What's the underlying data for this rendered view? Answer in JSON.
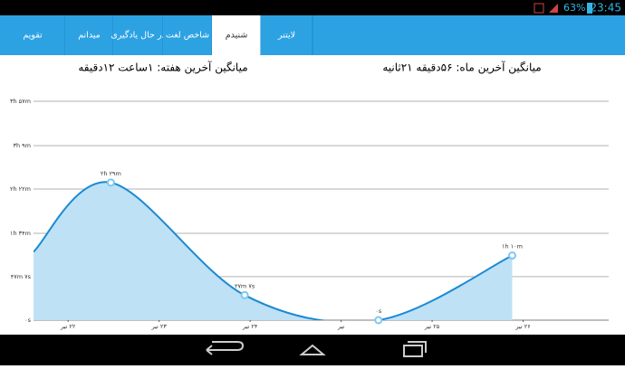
{
  "status_bar": {
    "battery": "63%",
    "time": "23:45"
  },
  "tabs": [
    "تقویم",
    "میدانم",
    "در حال یادگیری",
    "شاخص لغت",
    "شنیدم",
    "لایتنر"
  ],
  "selected_tab": 4,
  "stats": {
    "week": "میانگین آخرین هفته: ۱ساعت ۱۲دقیقه",
    "month": "میانگین آخرین ماه: ۵۶دقیقه ۲۱ثانیه"
  },
  "chart_data": {
    "type": "line",
    "x": [
      -0.38,
      0.47,
      1.94,
      3.41,
      4.88
    ],
    "series": [
      {
        "color": "#1a8ad4",
        "fill": "#bfe1f5",
        "marker": "#7cc8f0",
        "values": [
          74,
          149,
          27.12,
          0,
          70
        ],
        "value_labels": [
          null,
          "۲h ۲۹m",
          "۲۷m ۷s",
          "۰s",
          "۱h ۱۰m"
        ]
      }
    ],
    "xlim": [
      -0.38,
      5.94
    ],
    "xticks": [
      {
        "value": 0,
        "label": "۲۲ تیر"
      },
      {
        "value": 1,
        "label": "۲۳ تیر"
      },
      {
        "value": 2,
        "label": "۲۴ تیر"
      },
      {
        "value": 3,
        "label": "تیر"
      },
      {
        "value": 4,
        "label": "۲۵ تیر"
      },
      {
        "value": 5,
        "label": "۲۶ تیر"
      }
    ],
    "ylim": [
      0,
      237
    ],
    "yticks": [
      {
        "value": 0,
        "label": "۰s"
      },
      {
        "value": 47.12,
        "label": "۴۷m ۷s"
      },
      {
        "value": 94,
        "label": "۱h ۳۴m"
      },
      {
        "value": 142,
        "label": "۲h ۲۲m"
      },
      {
        "value": 189,
        "label": "۳h ۹m"
      },
      {
        "value": 237,
        "label": "۳h ۵۷m"
      }
    ],
    "grid": true
  }
}
